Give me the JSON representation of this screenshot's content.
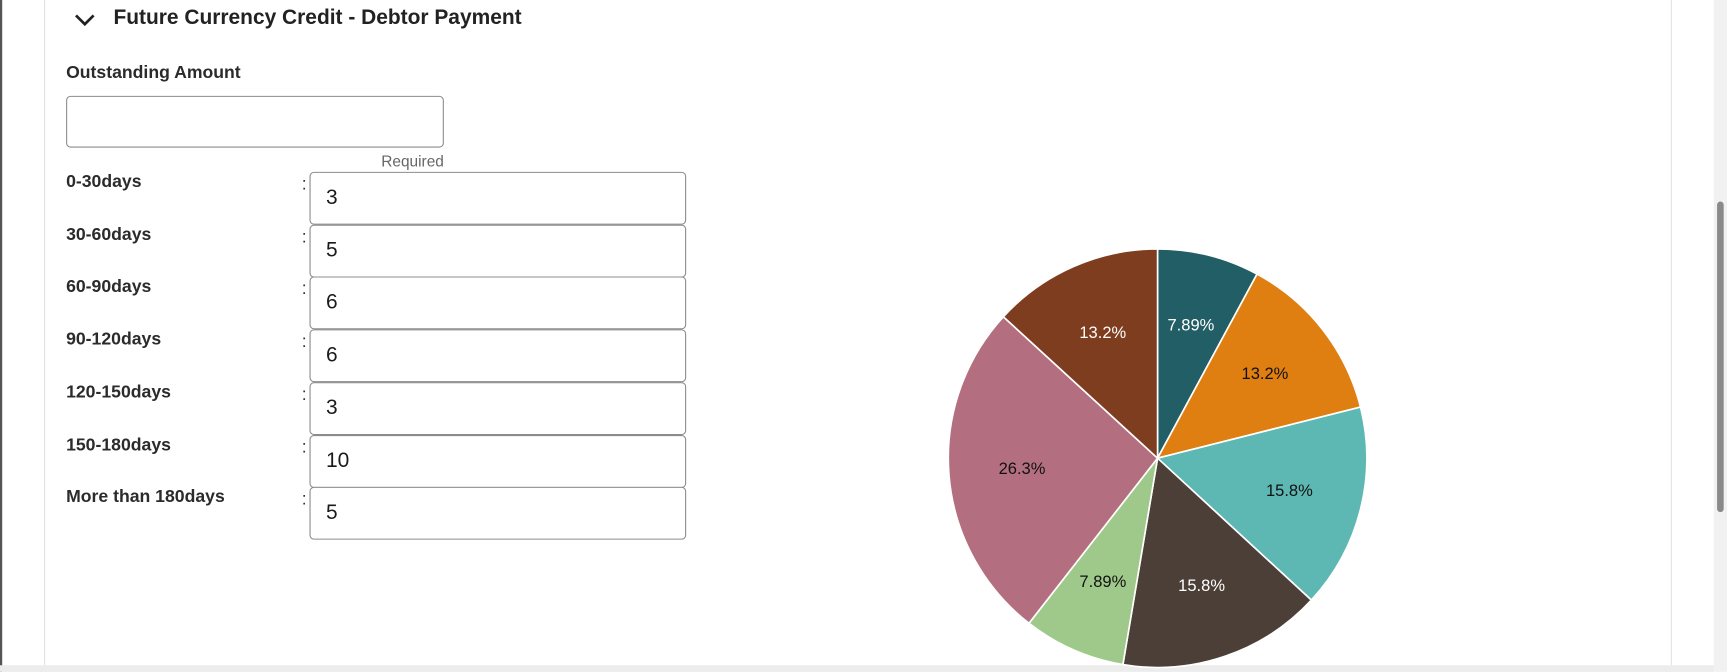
{
  "section": {
    "title": "Future Currency Credit - Debtor Payment"
  },
  "outstanding": {
    "label": "Outstanding Amount",
    "hint": "Required"
  },
  "separator": ":",
  "buckets": [
    {
      "label": "0-30days",
      "value": 3
    },
    {
      "label": "30-60days",
      "value": 5
    },
    {
      "label": "60-90days",
      "value": 6
    },
    {
      "label": "90-120days",
      "value": 6
    },
    {
      "label": "120-150days",
      "value": 3
    },
    {
      "label": "150-180days",
      "value": 10
    },
    {
      "label": "More than 180days",
      "value": 5
    }
  ],
  "chart_data": {
    "type": "pie",
    "values": [
      7.89,
      13.2,
      15.8,
      15.8,
      7.89,
      26.3,
      13.2
    ],
    "value_labels": [
      "7.89%",
      "13.2%",
      "15.8%",
      "15.8%",
      "7.89%",
      "26.3%",
      "13.2%"
    ],
    "colors": [
      "#225e65",
      "#df7f12",
      "#5db8b4",
      "#4c3f37",
      "#9fc98a",
      "#b36f7f",
      "#7f3d1f"
    ]
  }
}
